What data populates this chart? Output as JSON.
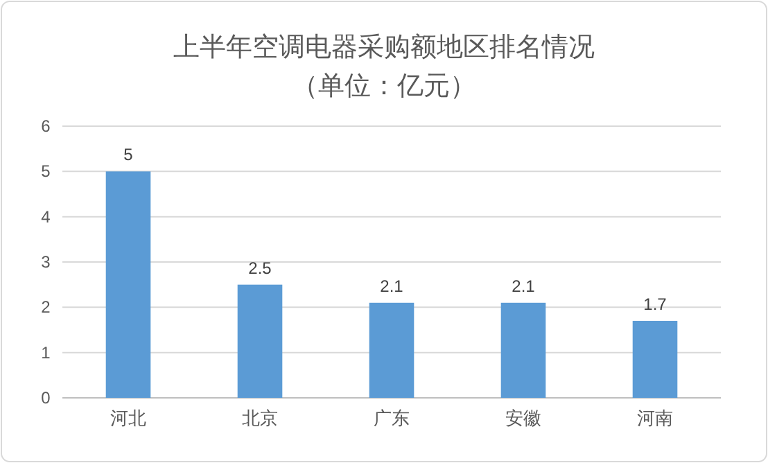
{
  "chart_data": {
    "type": "bar",
    "title": "上半年空调电器采购额地区排名情况",
    "subtitle": "（单位：亿元）",
    "categories": [
      "河北",
      "北京",
      "广东",
      "安徽",
      "河南"
    ],
    "values": [
      5,
      2.5,
      2.1,
      2.1,
      1.7
    ],
    "color": "#5b9bd5",
    "ylim": [
      0,
      6
    ],
    "yticks": [
      0,
      1,
      2,
      3,
      4,
      5,
      6
    ],
    "grid": "y",
    "data_labels": true
  }
}
